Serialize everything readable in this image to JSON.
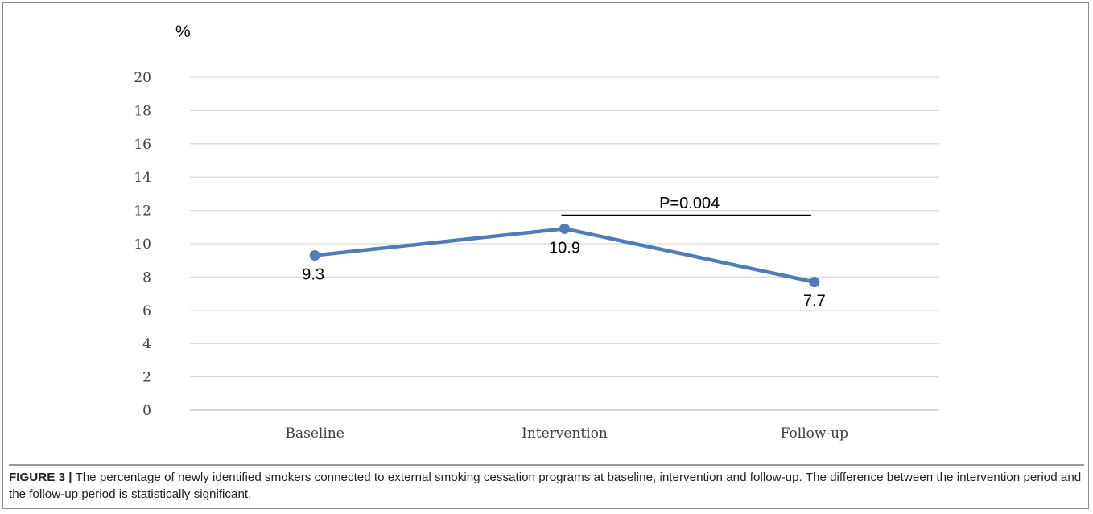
{
  "chart_data": {
    "type": "line",
    "unit_label": "%",
    "categories": [
      "Baseline",
      "Intervention",
      "Follow-up"
    ],
    "series": [
      {
        "values": [
          9.3,
          10.9,
          7.7
        ],
        "data_labels": [
          "9.3",
          "10.9",
          "7.7"
        ],
        "color": "#4f7cb8"
      }
    ],
    "ylim": [
      0,
      20
    ],
    "yticks": [
      "0",
      "2",
      "4",
      "6",
      "8",
      "10",
      "12",
      "14",
      "16",
      "18",
      "20"
    ],
    "grid": true,
    "annotation": {
      "text": "P=0.004",
      "from_category": "Intervention",
      "to_category": "Follow-up",
      "y": 11.7
    }
  },
  "caption": {
    "figure_label": "FIGURE 3 |",
    "text": " The percentage of newly identified smokers connected to external smoking cessation programs at baseline, intervention and follow-up. The difference between the intervention period and the follow-up period is statistically significant."
  }
}
